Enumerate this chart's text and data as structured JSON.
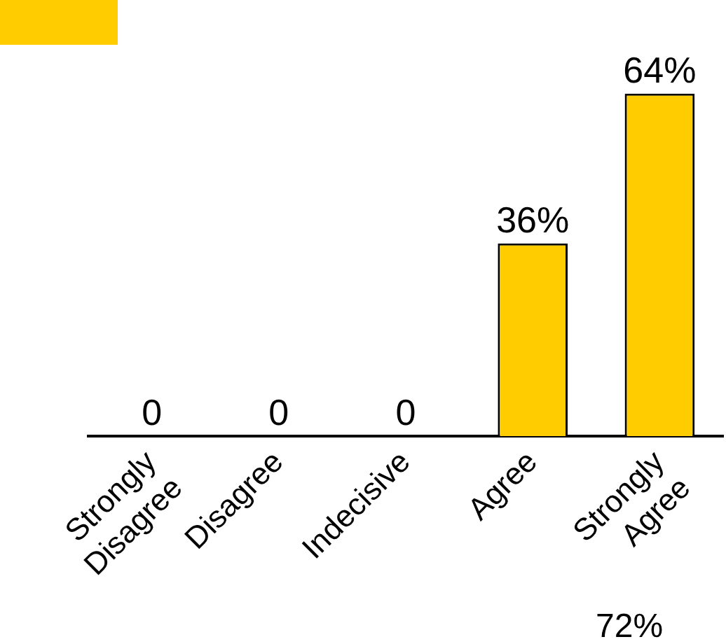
{
  "chart_data": {
    "type": "bar",
    "categories": [
      "Strongly Disagree",
      "Disagree",
      "Indecisive",
      "Agree",
      "Strongly Agree"
    ],
    "values": [
      0,
      0,
      0,
      36,
      64
    ],
    "value_labels": [
      "0",
      "0",
      "0",
      "36%",
      "64%"
    ],
    "color": "#ffcc00",
    "annotations": [
      "72%"
    ],
    "legend": false,
    "grid": false
  }
}
